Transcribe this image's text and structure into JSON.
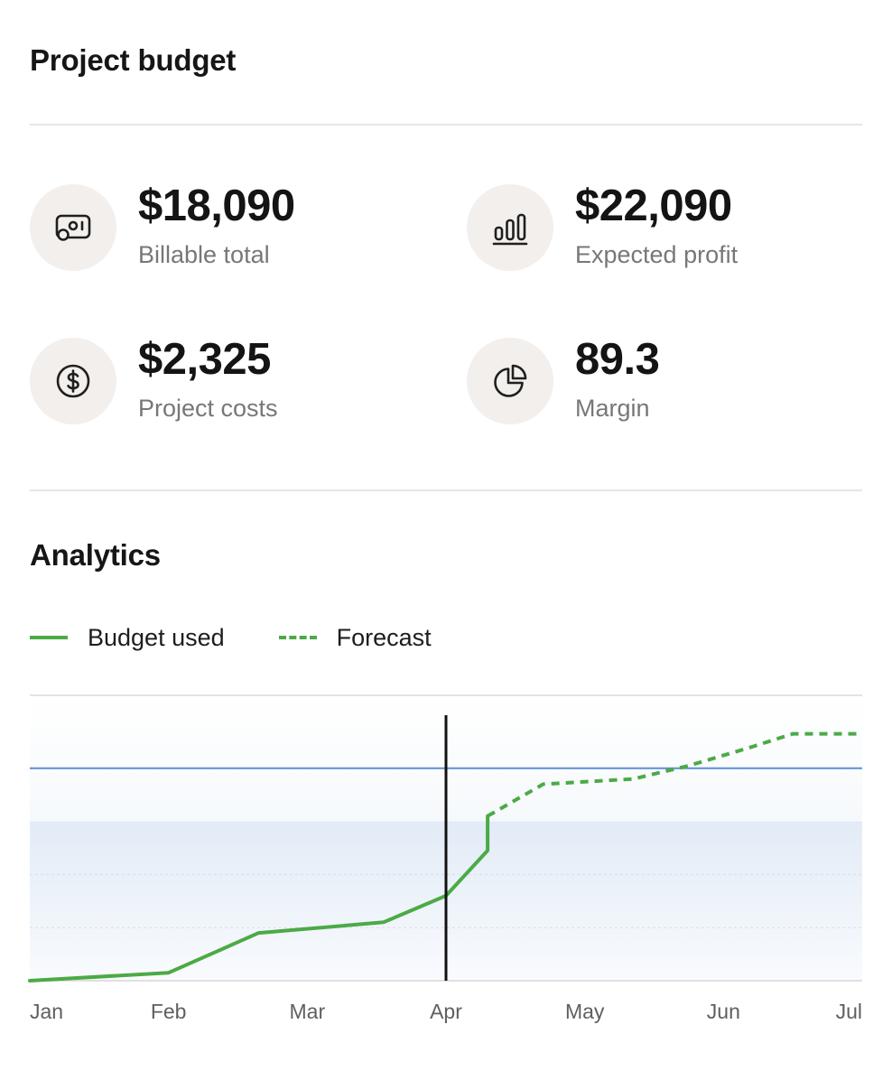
{
  "header": {
    "title": "Project budget"
  },
  "stats": [
    {
      "value": "$18,090",
      "label": "Billable total",
      "icon": "billable-icon"
    },
    {
      "value": "$22,090",
      "label": "Expected profit",
      "icon": "bar-chart-icon"
    },
    {
      "value": "$2,325",
      "label": "Project costs",
      "icon": "dollar-circle-icon"
    },
    {
      "value": "89.3",
      "label": "Margin",
      "icon": "pie-chart-icon"
    }
  ],
  "analytics": {
    "title": "Analytics",
    "legend": {
      "budget_used": "Budget used",
      "forecast": "Forecast"
    }
  },
  "colors": {
    "accent_green": "#4caa46",
    "budget_line": "#5b8fd6",
    "today_marker": "#111111",
    "icon_bg": "#f3efec"
  },
  "chart_data": {
    "type": "line",
    "title": "",
    "xlabel": "",
    "ylabel": "",
    "x_tick_labels": [
      "Jan",
      "Feb",
      "Mar",
      "Apr",
      "May",
      "Jun",
      "Jul"
    ],
    "x_range": [
      0,
      6
    ],
    "y_range": [
      0,
      100
    ],
    "grid": true,
    "budget_level": 80,
    "today_marker": 3.0,
    "series": [
      {
        "name": "Budget used",
        "style": "solid",
        "x": [
          0,
          1.0,
          1.65,
          2.55,
          3.0,
          3.3,
          3.3
        ],
        "y": [
          0,
          3,
          18,
          22,
          32,
          49,
          62
        ]
      },
      {
        "name": "Forecast",
        "style": "dashed",
        "x": [
          3.3,
          3.7,
          4.35,
          4.75,
          5.2,
          5.5,
          6.0
        ],
        "y": [
          62,
          74,
          76,
          81,
          88,
          93,
          93
        ]
      }
    ]
  }
}
